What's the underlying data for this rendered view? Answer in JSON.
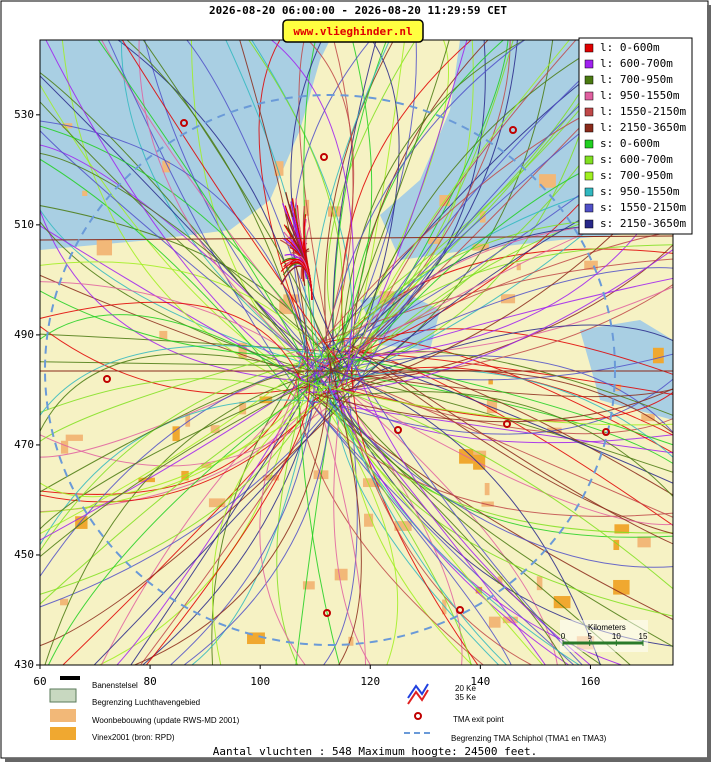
{
  "header": {
    "title": "2026-08-20 06:00:00 - 2026-08-20 11:29:59 CET",
    "badge": "www.vlieghinder.nl"
  },
  "map": {
    "xlim": [
      60,
      175
    ],
    "ylim": [
      430,
      543.6
    ],
    "xticks": [
      60,
      80,
      100,
      120,
      140,
      160
    ],
    "yticks": [
      430,
      450,
      470,
      490,
      510,
      530
    ],
    "scale": {
      "label": "Kilometers",
      "ticks": [
        0,
        5,
        10,
        15
      ]
    }
  },
  "legend": [
    {
      "label": "l: 0-600m",
      "color": "#e00000"
    },
    {
      "label": "l: 600-700m",
      "color": "#a020f0"
    },
    {
      "label": "l: 700-950m",
      "color": "#4a7a10"
    },
    {
      "label": "l: 950-1550m",
      "color": "#e060a0"
    },
    {
      "label": "l: 1550-2150m",
      "color": "#c04848"
    },
    {
      "label": "l: 2150-3650m",
      "color": "#8b2a1a"
    },
    {
      "label": "s: 0-600m",
      "color": "#20d020"
    },
    {
      "label": "s: 600-700m",
      "color": "#80e020"
    },
    {
      "label": "s: 700-950m",
      "color": "#a0f020"
    },
    {
      "label": "s: 950-1550m",
      "color": "#30b8c0"
    },
    {
      "label": "s: 1550-2150m",
      "color": "#5050c8"
    },
    {
      "label": "s: 2150-3650m",
      "color": "#28288a"
    }
  ],
  "bottom_legend": {
    "runways": "Banenstelsel",
    "airport_boundary": "Begrenzing Luchthavengebied",
    "housing": "Woonbebouwing (update RWS-MD 2001)",
    "vinex": "Vinex2001 (bron: RPD)",
    "ke20": "20 Ke",
    "ke35": "35 Ke",
    "exit_point": "TMA exit point",
    "tma_boundary": "Begrenzing TMA Schiphol  (TMA1 en TMA3)"
  },
  "footer": "Aantal vluchten : 548 Maximum hoogte: 24500 feet."
}
